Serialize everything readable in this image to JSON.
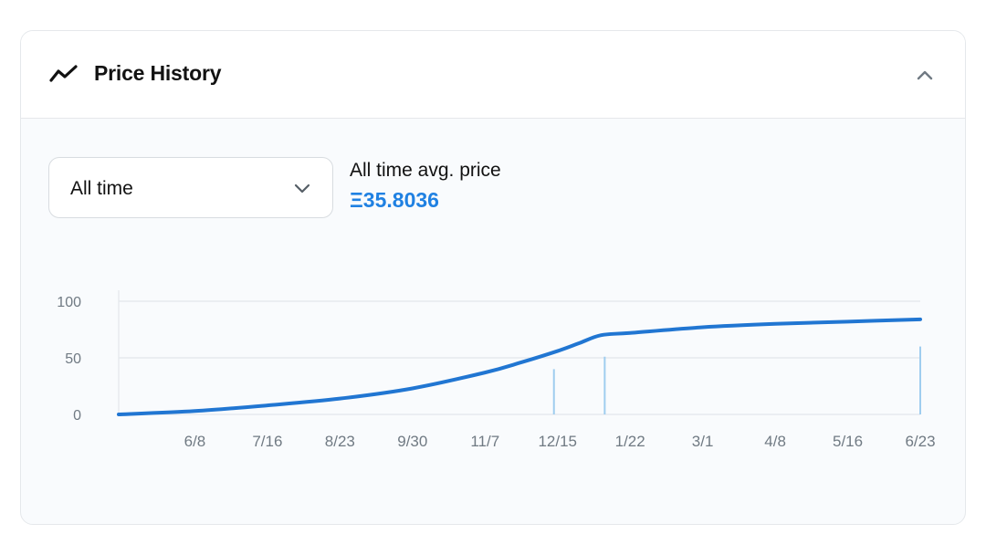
{
  "header": {
    "icon": "trend-line-icon",
    "title": "Price History",
    "collapse_icon": "chevron-up-icon"
  },
  "filter": {
    "selected": "All time",
    "icon": "chevron-down-icon"
  },
  "average": {
    "label": "All time avg. price",
    "value": "Ξ35.8036"
  },
  "colors": {
    "accent": "#2081e2",
    "line": "#2176d2",
    "volume": "#9fcdef",
    "grid": "#e3e7eb",
    "tick_text": "#707a83"
  },
  "chart_data": {
    "type": "line",
    "title": "",
    "xlabel": "",
    "ylabel": "",
    "ylim": [
      0,
      100
    ],
    "yticks": [
      0,
      50,
      100
    ],
    "xlim": [
      -10.5,
      100
    ],
    "x_tick_labels": [
      {
        "x": 0,
        "label": "6/8"
      },
      {
        "x": 10,
        "label": "7/16"
      },
      {
        "x": 20,
        "label": "8/23"
      },
      {
        "x": 30,
        "label": "9/30"
      },
      {
        "x": 40,
        "label": "11/7"
      },
      {
        "x": 50,
        "label": "12/15"
      },
      {
        "x": 60,
        "label": "1/22"
      },
      {
        "x": 70,
        "label": "3/1"
      },
      {
        "x": 80,
        "label": "4/8"
      },
      {
        "x": 90,
        "label": "5/16"
      },
      {
        "x": 100,
        "label": "6/23"
      }
    ],
    "grid": true,
    "series": [
      {
        "type": "line",
        "x": [
          -10.5,
          0,
          10,
          20,
          30,
          40,
          45,
          50,
          53,
          56,
          60,
          70,
          80,
          90,
          100
        ],
        "y": [
          0,
          3,
          8,
          14,
          23,
          37,
          46,
          56,
          63,
          70,
          72,
          77,
          80,
          82,
          84
        ]
      },
      {
        "type": "bar",
        "x": [
          49.5,
          56.5,
          100
        ],
        "y": [
          40,
          51,
          60
        ]
      }
    ]
  }
}
